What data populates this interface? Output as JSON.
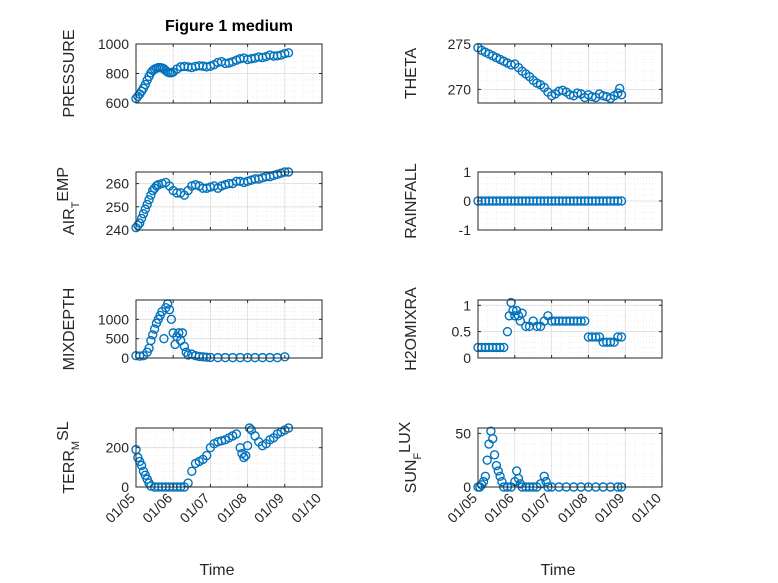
{
  "figure": {
    "marker_color": "#0072BD"
  },
  "chart_data": [
    {
      "type": "scatter",
      "title": "Figure 1 medium",
      "ylabel": "PRESSURE",
      "xlabel": "",
      "ylim": [
        600,
        1000
      ],
      "yticks": [
        600,
        800,
        1000
      ],
      "x_tick_labels": [
        "01/05",
        "01/06",
        "01/07",
        "01/08",
        "01/09",
        "01/10"
      ],
      "show_x_tick_labels": false,
      "grid": true,
      "x": [
        0.0,
        0.05,
        0.1,
        0.15,
        0.2,
        0.25,
        0.3,
        0.35,
        0.4,
        0.45,
        0.5,
        0.55,
        0.6,
        0.65,
        0.7,
        0.75,
        0.8,
        0.85,
        0.9,
        0.95,
        1.0,
        1.1,
        1.2,
        1.3,
        1.4,
        1.5,
        1.6,
        1.7,
        1.8,
        1.9,
        2.0,
        2.1,
        2.2,
        2.3,
        2.4,
        2.5,
        2.6,
        2.7,
        2.8,
        2.9,
        3.0,
        3.1,
        3.2,
        3.3,
        3.4,
        3.5,
        3.6,
        3.7,
        3.8,
        3.9,
        4.0,
        4.1
      ],
      "values": [
        630,
        645,
        660,
        680,
        700,
        725,
        755,
        780,
        805,
        820,
        830,
        835,
        840,
        840,
        838,
        832,
        820,
        810,
        805,
        805,
        810,
        830,
        845,
        848,
        845,
        840,
        848,
        852,
        850,
        845,
        850,
        860,
        875,
        880,
        868,
        872,
        880,
        890,
        900,
        905,
        895,
        900,
        905,
        912,
        908,
        915,
        925,
        918,
        920,
        925,
        935,
        940
      ]
    },
    {
      "type": "scatter",
      "ylabel": "THETA",
      "xlabel": "",
      "ylim": [
        268.5,
        275
      ],
      "yticks": [
        270,
        275
      ],
      "x_tick_labels": [
        "01/05",
        "01/06",
        "01/07",
        "01/08",
        "01/09",
        "01/10"
      ],
      "show_x_tick_labels": false,
      "grid": true,
      "x": [
        0.0,
        0.1,
        0.2,
        0.3,
        0.4,
        0.5,
        0.6,
        0.7,
        0.8,
        0.9,
        1.0,
        1.1,
        1.2,
        1.3,
        1.4,
        1.5,
        1.6,
        1.7,
        1.8,
        1.9,
        2.0,
        2.1,
        2.2,
        2.3,
        2.4,
        2.5,
        2.6,
        2.7,
        2.8,
        2.9,
        3.0,
        3.1,
        3.2,
        3.3,
        3.4,
        3.5,
        3.6,
        3.7,
        3.8,
        3.85,
        3.9
      ],
      "values": [
        274.6,
        274.3,
        274.1,
        273.9,
        273.7,
        273.5,
        273.3,
        273.1,
        272.9,
        272.7,
        272.8,
        272.4,
        272.0,
        271.7,
        271.4,
        271.0,
        270.7,
        270.5,
        270.2,
        269.7,
        269.3,
        269.5,
        269.8,
        269.9,
        269.7,
        269.4,
        269.3,
        269.6,
        269.5,
        269.1,
        269.4,
        269.2,
        269.1,
        269.5,
        269.3,
        269.2,
        269.0,
        269.3,
        269.6,
        270.1,
        269.4
      ]
    },
    {
      "type": "scatter",
      "ylabel": "AIR_TEMP",
      "ylabel_main": "AIR",
      "ylabel_sub": "T",
      "ylabel_rest": "EMP",
      "xlabel": "",
      "ylim": [
        240,
        265
      ],
      "yticks": [
        240,
        250,
        260
      ],
      "x_tick_labels": [
        "01/05",
        "01/06",
        "01/07",
        "01/08",
        "01/09",
        "01/10"
      ],
      "show_x_tick_labels": false,
      "grid": true,
      "x": [
        0.0,
        0.05,
        0.1,
        0.15,
        0.2,
        0.25,
        0.3,
        0.35,
        0.4,
        0.45,
        0.5,
        0.55,
        0.6,
        0.7,
        0.8,
        0.9,
        1.0,
        1.1,
        1.2,
        1.3,
        1.4,
        1.5,
        1.6,
        1.7,
        1.8,
        1.9,
        2.0,
        2.1,
        2.2,
        2.3,
        2.4,
        2.5,
        2.6,
        2.7,
        2.8,
        2.9,
        3.0,
        3.1,
        3.2,
        3.3,
        3.4,
        3.5,
        3.6,
        3.7,
        3.8,
        3.9,
        4.0,
        4.1
      ],
      "values": [
        241,
        242,
        243,
        245,
        247,
        249,
        251,
        253,
        255,
        257,
        258,
        259,
        259.5,
        260,
        260.5,
        259,
        257,
        256,
        256,
        255,
        257,
        259,
        259.5,
        259,
        258,
        258,
        258.5,
        259,
        258,
        259,
        259.5,
        260,
        260,
        261,
        261,
        260.5,
        261,
        261.5,
        262,
        262,
        262.5,
        263,
        263,
        263.5,
        264,
        264.5,
        265,
        265
      ]
    },
    {
      "type": "scatter",
      "ylabel": "RAINFALL",
      "xlabel": "",
      "ylim": [
        -1,
        1
      ],
      "yticks": [
        -1,
        0,
        1
      ],
      "x_tick_labels": [
        "01/05",
        "01/06",
        "01/07",
        "01/08",
        "01/09",
        "01/10"
      ],
      "show_x_tick_labels": false,
      "grid": true,
      "x": [
        0.0,
        0.1,
        0.2,
        0.3,
        0.4,
        0.5,
        0.6,
        0.7,
        0.8,
        0.9,
        1.0,
        1.1,
        1.2,
        1.3,
        1.4,
        1.5,
        1.6,
        1.7,
        1.8,
        1.9,
        2.0,
        2.1,
        2.2,
        2.3,
        2.4,
        2.5,
        2.6,
        2.7,
        2.8,
        2.9,
        3.0,
        3.1,
        3.2,
        3.3,
        3.4,
        3.5,
        3.6,
        3.7,
        3.8,
        3.9
      ],
      "values": [
        0,
        0,
        0,
        0,
        0,
        0,
        0,
        0,
        0,
        0,
        0,
        0,
        0,
        0,
        0,
        0,
        0,
        0,
        0,
        0,
        0,
        0,
        0,
        0,
        0,
        0,
        0,
        0,
        0,
        0,
        0,
        0,
        0,
        0,
        0,
        0,
        0,
        0,
        0,
        0
      ]
    },
    {
      "type": "scatter",
      "ylabel": "MIXDEPTH",
      "xlabel": "",
      "ylim": [
        0,
        1500
      ],
      "yticks": [
        0,
        500,
        1000
      ],
      "x_tick_labels": [
        "01/05",
        "01/06",
        "01/07",
        "01/08",
        "01/09",
        "01/10"
      ],
      "show_x_tick_labels": false,
      "grid": true,
      "x": [
        0.0,
        0.1,
        0.2,
        0.3,
        0.35,
        0.4,
        0.45,
        0.5,
        0.55,
        0.6,
        0.65,
        0.7,
        0.75,
        0.8,
        0.85,
        0.9,
        0.95,
        1.0,
        1.05,
        1.1,
        1.15,
        1.2,
        1.25,
        1.3,
        1.35,
        1.4,
        1.5,
        1.6,
        1.7,
        1.8,
        1.9,
        2.0,
        2.2,
        2.4,
        2.6,
        2.8,
        3.0,
        3.2,
        3.4,
        3.6,
        3.8,
        4.0
      ],
      "values": [
        60,
        50,
        60,
        150,
        250,
        450,
        600,
        750,
        900,
        1000,
        1100,
        1200,
        500,
        1300,
        1400,
        1250,
        1000,
        650,
        350,
        550,
        650,
        450,
        650,
        300,
        150,
        80,
        100,
        60,
        40,
        30,
        20,
        15,
        10,
        10,
        10,
        10,
        10,
        10,
        10,
        10,
        10,
        30
      ]
    },
    {
      "type": "scatter",
      "ylabel": "H2OMIXRA",
      "xlabel": "",
      "ylim": [
        0,
        1.1
      ],
      "yticks": [
        0,
        0.5,
        1
      ],
      "x_tick_labels": [
        "01/05",
        "01/06",
        "01/07",
        "01/08",
        "01/09",
        "01/10"
      ],
      "show_x_tick_labels": false,
      "grid": true,
      "x": [
        0.0,
        0.1,
        0.2,
        0.3,
        0.4,
        0.5,
        0.6,
        0.7,
        0.8,
        0.85,
        0.9,
        0.95,
        1.0,
        1.05,
        1.1,
        1.15,
        1.2,
        1.3,
        1.4,
        1.5,
        1.6,
        1.7,
        1.8,
        1.9,
        2.0,
        2.1,
        2.2,
        2.3,
        2.4,
        2.5,
        2.6,
        2.7,
        2.8,
        2.9,
        3.0,
        3.1,
        3.2,
        3.3,
        3.4,
        3.5,
        3.6,
        3.7,
        3.8,
        3.9
      ],
      "values": [
        0.2,
        0.2,
        0.2,
        0.2,
        0.2,
        0.2,
        0.2,
        0.2,
        0.5,
        0.8,
        1.05,
        0.9,
        0.8,
        0.9,
        0.8,
        0.7,
        0.85,
        0.6,
        0.6,
        0.7,
        0.6,
        0.6,
        0.7,
        0.8,
        0.7,
        0.7,
        0.7,
        0.7,
        0.7,
        0.7,
        0.7,
        0.7,
        0.7,
        0.7,
        0.4,
        0.4,
        0.4,
        0.4,
        0.3,
        0.3,
        0.3,
        0.3,
        0.4,
        0.4
      ]
    },
    {
      "type": "scatter",
      "ylabel": "TERR_MSL",
      "ylabel_main": "TERR",
      "ylabel_sub": "M",
      "ylabel_rest": "SL",
      "xlabel": "Time",
      "ylim": [
        0,
        300
      ],
      "yticks": [
        0,
        200
      ],
      "x_tick_labels": [
        "01/05",
        "01/06",
        "01/07",
        "01/08",
        "01/09",
        "01/10"
      ],
      "show_x_tick_labels": true,
      "grid": true,
      "x": [
        0.0,
        0.05,
        0.1,
        0.15,
        0.2,
        0.25,
        0.3,
        0.35,
        0.4,
        0.5,
        0.6,
        0.7,
        0.8,
        0.9,
        1.0,
        1.1,
        1.2,
        1.3,
        1.4,
        1.5,
        1.6,
        1.7,
        1.8,
        1.9,
        2.0,
        2.1,
        2.2,
        2.3,
        2.4,
        2.5,
        2.6,
        2.7,
        2.8,
        2.85,
        2.9,
        2.95,
        3.0,
        3.05,
        3.1,
        3.2,
        3.3,
        3.4,
        3.5,
        3.6,
        3.7,
        3.8,
        3.9,
        4.0,
        4.1
      ],
      "values": [
        190,
        150,
        130,
        110,
        80,
        60,
        40,
        20,
        5,
        0,
        0,
        0,
        0,
        0,
        0,
        0,
        0,
        0,
        20,
        80,
        120,
        130,
        140,
        160,
        200,
        220,
        230,
        235,
        240,
        250,
        260,
        270,
        200,
        170,
        150,
        160,
        210,
        300,
        290,
        260,
        230,
        210,
        220,
        240,
        250,
        270,
        280,
        290,
        310
      ]
    },
    {
      "type": "scatter",
      "ylabel": "SUN_FLUX",
      "ylabel_main": "SUN",
      "ylabel_sub": "F",
      "ylabel_rest": "LUX",
      "xlabel": "Time",
      "ylim": [
        0,
        55
      ],
      "yticks": [
        0,
        50
      ],
      "x_tick_labels": [
        "01/05",
        "01/06",
        "01/07",
        "01/08",
        "01/09",
        "01/10"
      ],
      "show_x_tick_labels": true,
      "grid": true,
      "x": [
        0.0,
        0.05,
        0.1,
        0.15,
        0.2,
        0.25,
        0.3,
        0.35,
        0.4,
        0.45,
        0.5,
        0.55,
        0.6,
        0.65,
        0.7,
        0.8,
        0.9,
        1.0,
        1.05,
        1.1,
        1.15,
        1.2,
        1.3,
        1.4,
        1.5,
        1.6,
        1.7,
        1.8,
        1.85,
        1.9,
        2.0,
        2.2,
        2.4,
        2.6,
        2.8,
        3.0,
        3.2,
        3.4,
        3.6,
        3.8,
        3.9
      ],
      "values": [
        0,
        0,
        2,
        5,
        10,
        25,
        40,
        52,
        45,
        30,
        20,
        15,
        10,
        5,
        0,
        0,
        0,
        5,
        15,
        8,
        3,
        0,
        0,
        0,
        0,
        0,
        3,
        10,
        5,
        0,
        0,
        0,
        0,
        0,
        0,
        0,
        0,
        0,
        0,
        0,
        0
      ]
    }
  ]
}
